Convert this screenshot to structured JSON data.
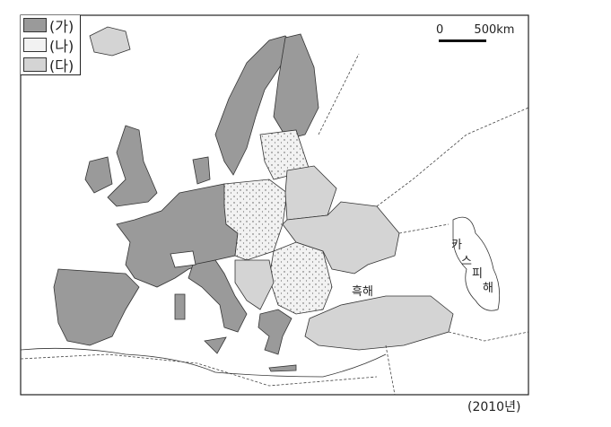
{
  "legend": [
    {
      "label": "(가)",
      "color": "#9a9a9a",
      "pattern": "solid"
    },
    {
      "label": "(나)",
      "color": "#f2f2f2",
      "pattern": "dotted"
    },
    {
      "label": "(다)",
      "color": "#d4d4d4",
      "pattern": "solid"
    }
  ],
  "scale": {
    "zero": "0",
    "distance": "500km"
  },
  "labels": {
    "black_sea": "흑해",
    "caspian": [
      "카",
      "스",
      "피",
      "해"
    ]
  },
  "caption": "(2010년)"
}
